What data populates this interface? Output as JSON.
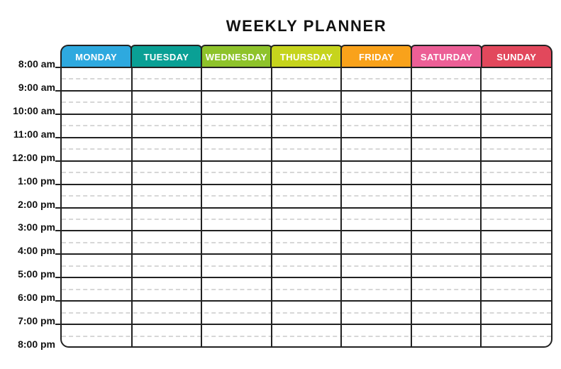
{
  "title": "WEEKLY PLANNER",
  "days": [
    {
      "label": "MONDAY",
      "color": "#2EA9DF"
    },
    {
      "label": "TUESDAY",
      "color": "#0AA095"
    },
    {
      "label": "WEDNESDAY",
      "color": "#8EC32B"
    },
    {
      "label": "THURSDAY",
      "color": "#C6D41D"
    },
    {
      "label": "FRIDAY",
      "color": "#F9A21B"
    },
    {
      "label": "SATURDAY",
      "color": "#EC5F96"
    },
    {
      "label": "SUNDAY",
      "color": "#E2485C"
    }
  ],
  "times": [
    "8:00 am",
    "9:00 am",
    "10:00 am",
    "11:00 am",
    "12:00 pm",
    "1:00 pm",
    "2:00 pm",
    "3:00 pm",
    "4:00 pm",
    "5:00 pm",
    "6:00 pm",
    "7:00 pm",
    "8:00 pm"
  ],
  "colors": {
    "grid_line": "#222222",
    "half_hour_line": "#D7D7D7",
    "text": "#121212",
    "background": "#FFFFFF"
  }
}
